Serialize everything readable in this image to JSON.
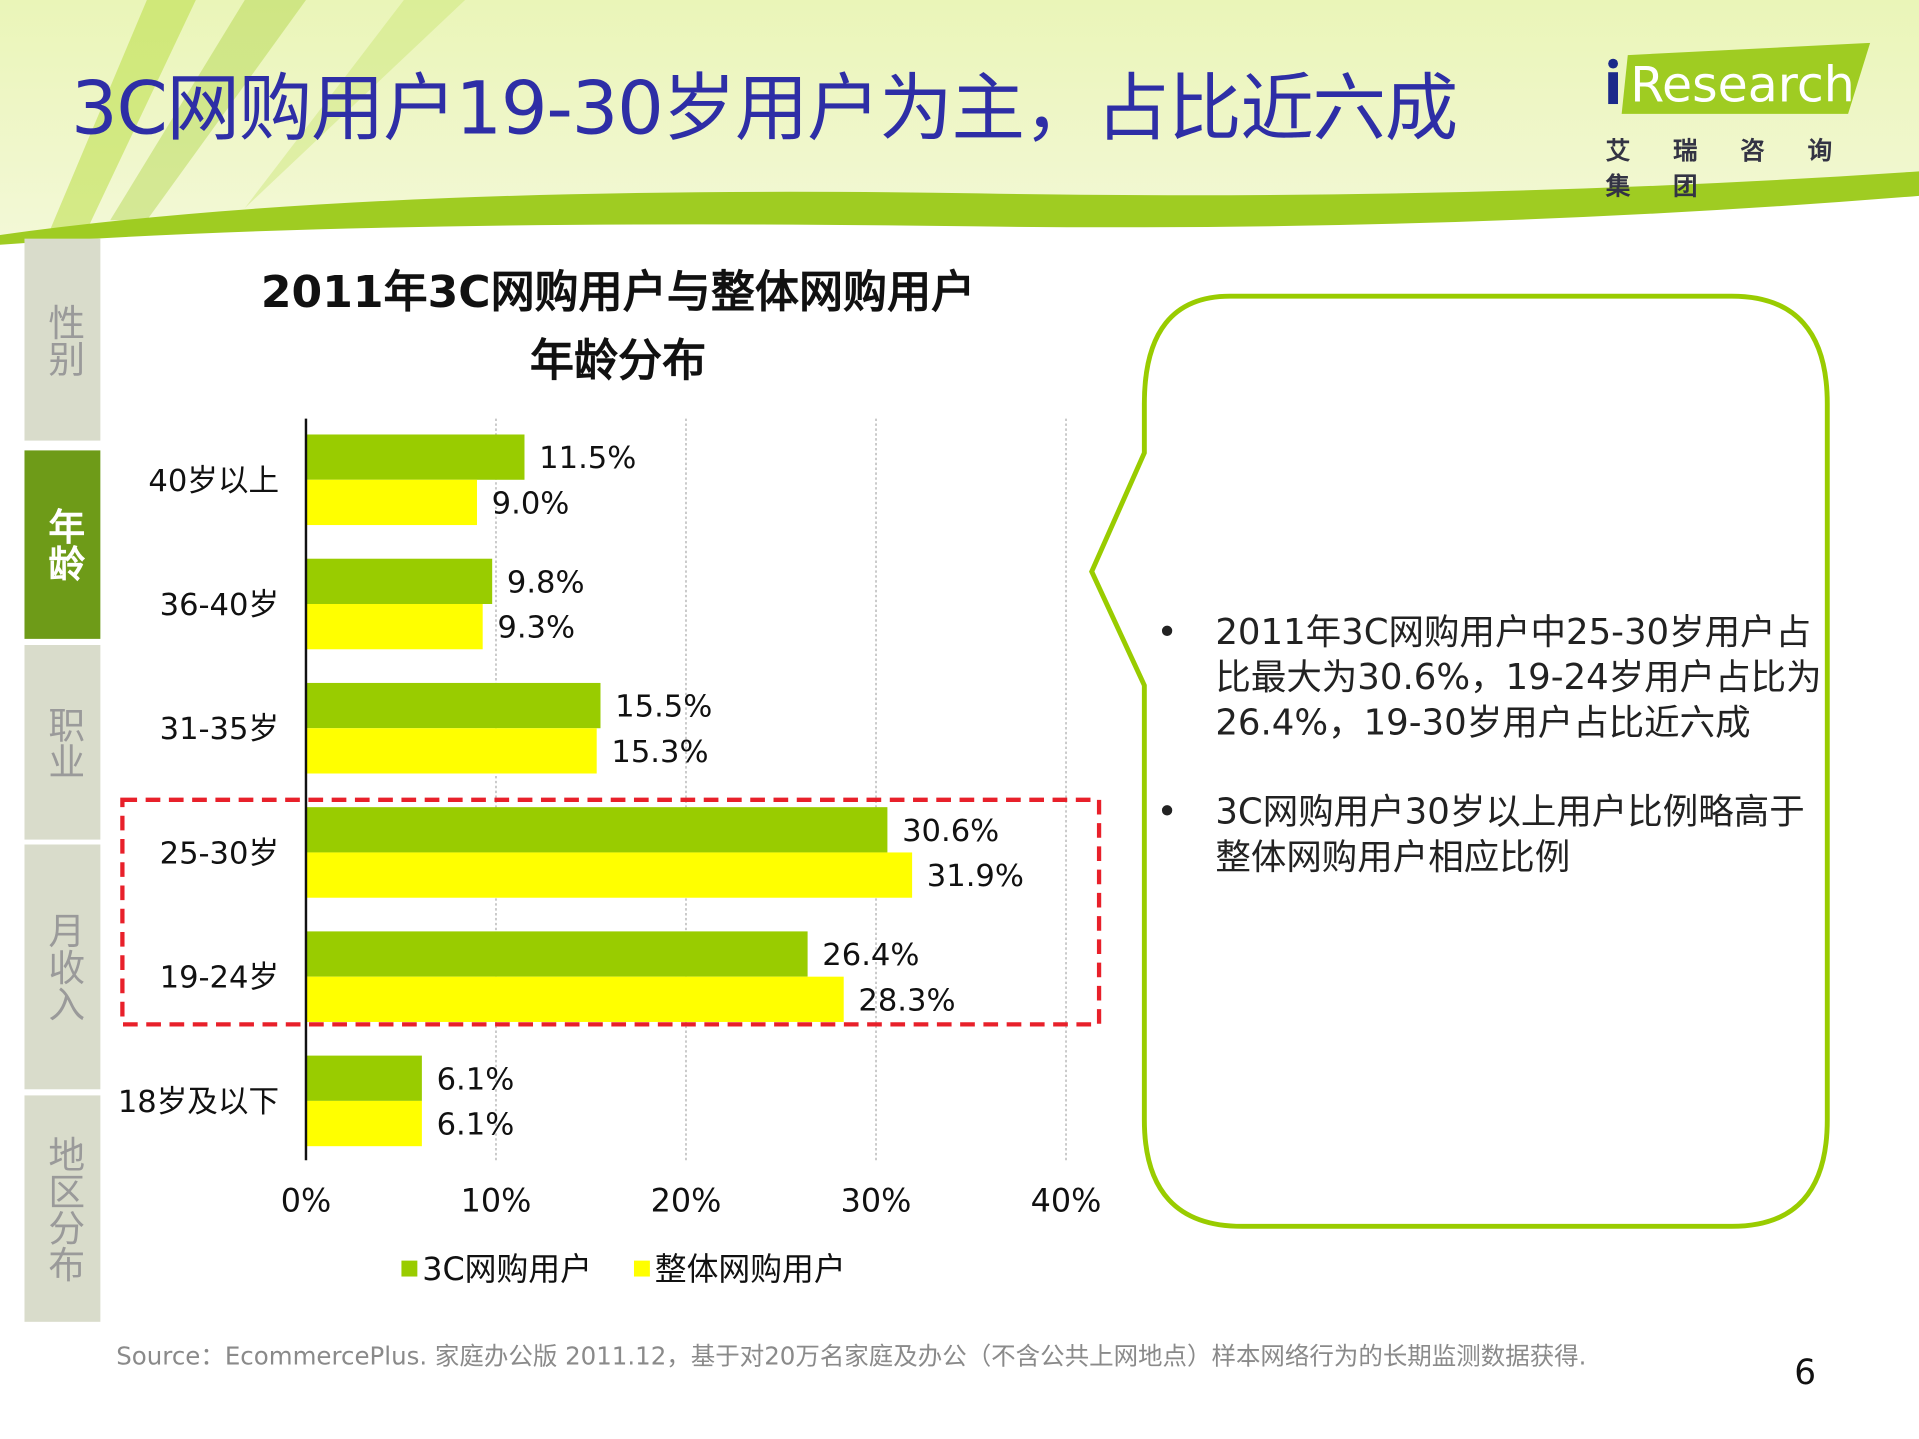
{
  "header": {
    "title": "3C网购用户19-30岁用户为主，占比近六成",
    "logo_text": "iResearch",
    "logo_sub": "艾 瑞 咨 询 集 团"
  },
  "sidebar": {
    "items": [
      {
        "label": "性别"
      },
      {
        "label": "年龄",
        "active": true
      },
      {
        "label": "职业"
      },
      {
        "label": "月收入"
      },
      {
        "label": "地区分布"
      }
    ]
  },
  "colors": {
    "green": "#99cc00",
    "yellow": "#ffff00",
    "title": "#2e2ea6",
    "highlight_box": "#e8202a"
  },
  "chart_data": {
    "type": "bar",
    "orientation": "horizontal",
    "title_lines": [
      "2011年3C网购用户与整体网购用户",
      "年龄分布"
    ],
    "categories": [
      "40岁以上",
      "36-40岁",
      "31-35岁",
      "25-30岁",
      "19-24岁",
      "18岁及以下"
    ],
    "series": [
      {
        "name": "3C网购用户",
        "color": "#99cc00",
        "values": [
          11.5,
          9.8,
          15.5,
          30.6,
          26.4,
          6.1
        ],
        "labels": [
          "11.5%",
          "9.8%",
          "15.5%",
          "30.6%",
          "26.4%",
          "6.1%"
        ]
      },
      {
        "name": "整体网购用户",
        "color": "#ffff00",
        "values": [
          9.0,
          9.3,
          15.3,
          31.9,
          28.3,
          6.1
        ],
        "labels": [
          "9.0%",
          "9.3%",
          "15.3%",
          "31.9%",
          "28.3%",
          "6.1%"
        ]
      }
    ],
    "xlim": [
      0,
      40
    ],
    "xticks": [
      "0%",
      "10%",
      "20%",
      "30%",
      "40%"
    ],
    "grid": "vertical dotted",
    "legend": "bottom",
    "highlight_categories": [
      "25-30岁",
      "19-24岁"
    ]
  },
  "callout": {
    "bullets": [
      "2011年3C网购用户中25-30岁用户占比最大为30.6%，19-24岁用户占比为26.4%，19-30岁用户占比近六成",
      "3C网购用户30岁以上用户比例略高于整体网购用户相应比例"
    ],
    "bullet_char": "•"
  },
  "footer": {
    "source": "Source：EcommercePlus. 家庭办公版 2011.12，基于对20万名家庭及办公（不含公共上网地点）样本网络行为的长期监测数据获得.",
    "page": "6"
  }
}
